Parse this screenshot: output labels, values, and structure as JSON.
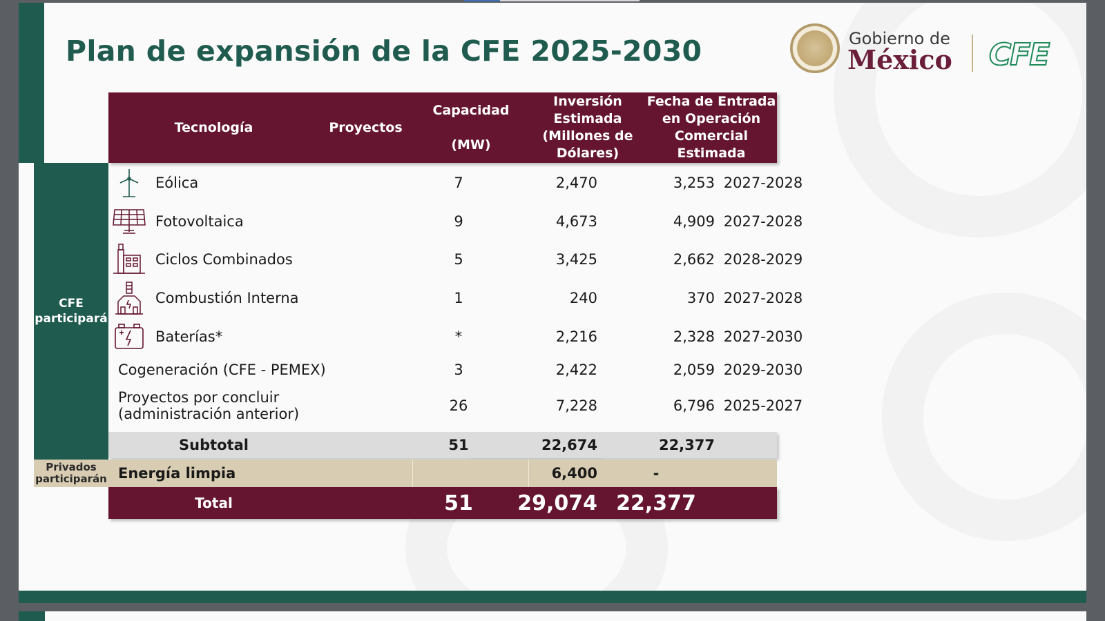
{
  "slide": {
    "title": "Plan de expansión de la CFE 2025-2030",
    "logos": {
      "gobierno_de": "Gobierno de",
      "mexico": "México",
      "cfe": "CFE"
    }
  },
  "table": {
    "headers": {
      "tecnologia": "Tecnología",
      "proyectos": "Proyectos",
      "capacidad_line1": "Capacidad",
      "capacidad_line2": "(MW)",
      "inversion_line1": "Inversión",
      "inversion_line2": "Estimada",
      "inversion_line3": "(Millones de",
      "inversion_line4": "Dólares)",
      "fecha_line1": "Fecha de Entrada",
      "fecha_line2": "en Operación",
      "fecha_line3": "Comercial",
      "fecha_line4": "Estimada"
    },
    "group_cfe": "CFE participará",
    "group_privados": "Privados participarán",
    "rows": [
      {
        "tecnologia": "Eólica",
        "icon": "wind-turbine-icon",
        "proyectos": "7",
        "capacidad": "2,470",
        "inversion": "3,253",
        "fecha": "2027-2028"
      },
      {
        "tecnologia": "Fotovoltaica",
        "icon": "solar-panel-icon",
        "proyectos": "9",
        "capacidad": "4,673",
        "inversion": "4,909",
        "fecha": "2027-2028"
      },
      {
        "tecnologia": "Ciclos Combinados",
        "icon": "power-plant-icon",
        "proyectos": "5",
        "capacidad": "3,425",
        "inversion": "2,662",
        "fecha": "2028-2029"
      },
      {
        "tecnologia": "Combustión Interna",
        "icon": "factory-icon",
        "proyectos": "1",
        "capacidad": "240",
        "inversion": "370",
        "fecha": "2027-2028"
      },
      {
        "tecnologia": "Baterías*",
        "icon": "battery-icon",
        "proyectos": "*",
        "capacidad": "2,216",
        "inversion": "2,328",
        "fecha": "2027-2030"
      },
      {
        "tecnologia": "Cogeneración (CFE - PEMEX)",
        "icon": "",
        "proyectos": "3",
        "capacidad": "2,422",
        "inversion": "2,059",
        "fecha": "2029-2030"
      },
      {
        "tecnologia_line1": "Proyectos por concluir",
        "tecnologia_line2": "(administración anterior)",
        "icon": "",
        "proyectos": "26",
        "capacidad": "7,228",
        "inversion": "6,796",
        "fecha": "2025-2027"
      }
    ],
    "subtotal": {
      "label": "Subtotal",
      "proyectos": "51",
      "capacidad": "22,674",
      "inversion": "22,377"
    },
    "privados": {
      "label": "Energía limpia",
      "capacidad": "6,400",
      "inversion": "-"
    },
    "total": {
      "label": "Total",
      "proyectos": "51",
      "capacidad": "29,074",
      "inversion": "22,377"
    }
  },
  "colors": {
    "primary_green": "#1f5b4e",
    "guinda": "#651530",
    "beige": "#d8ccb2",
    "subtotal_gray": "#dcdcdc"
  }
}
